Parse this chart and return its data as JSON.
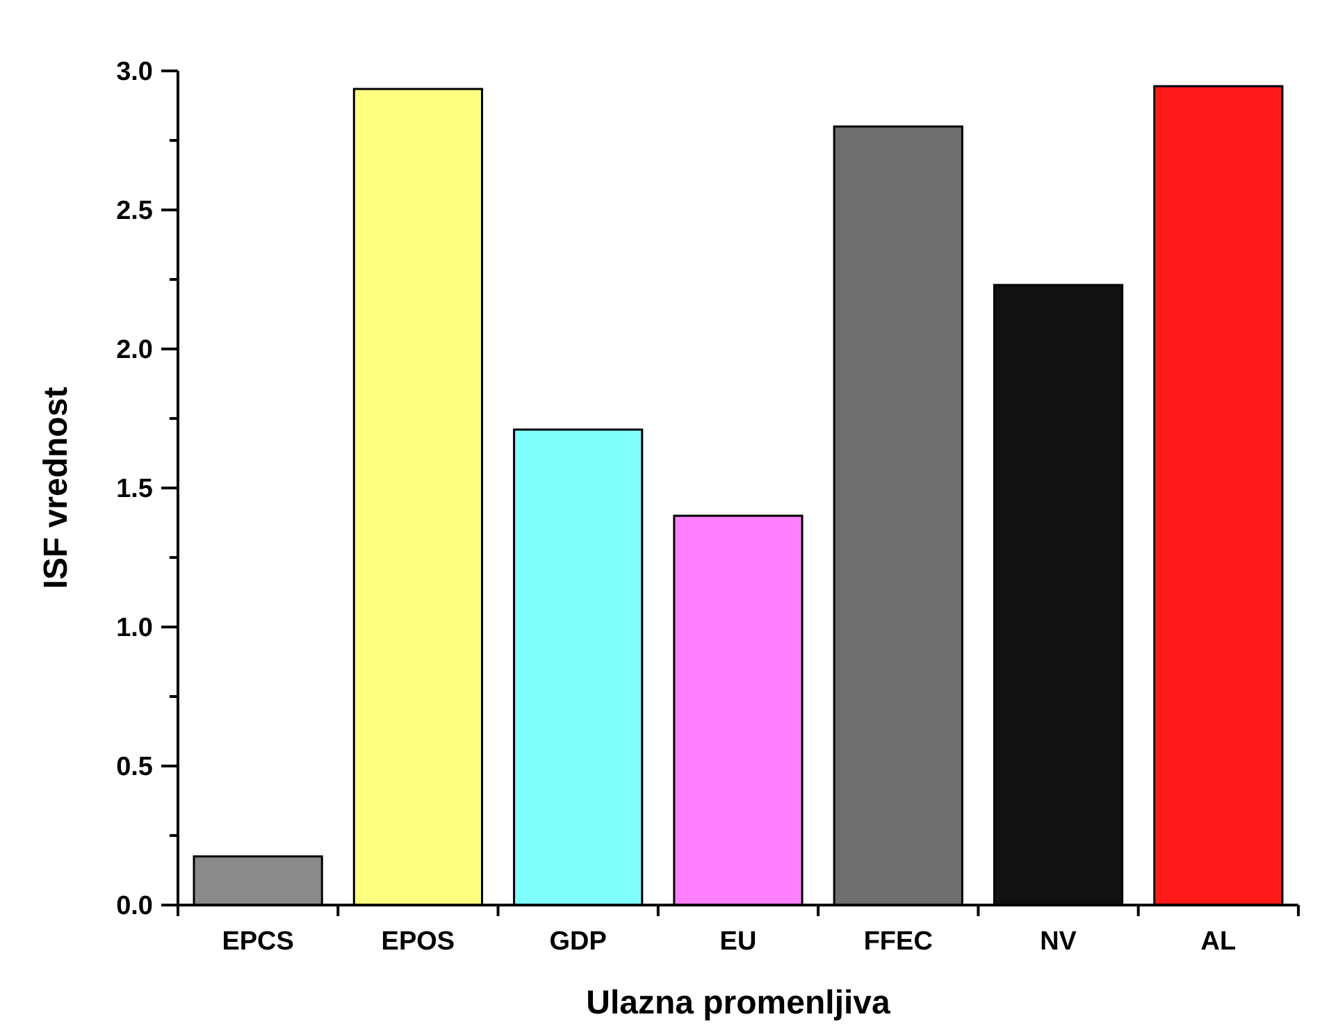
{
  "chart_data": {
    "type": "bar",
    "xlabel": "Ulazna promenljiva",
    "ylabel": "ISF vrednost",
    "categories": [
      "EPCS",
      "EPOS",
      "GDP",
      "EU",
      "FFEC",
      "NV",
      "AL"
    ],
    "values": [
      0.175,
      2.935,
      1.71,
      1.4,
      2.8,
      2.23,
      2.945
    ],
    "colors": [
      "#8a8a8a",
      "#ffff80",
      "#80ffff",
      "#ff80ff",
      "#6e6e6e",
      "#111111",
      "#ff1a1a"
    ],
    "ylim": [
      0,
      3
    ],
    "yticks": [
      {
        "value": 0,
        "label": "0.0"
      },
      {
        "value": 0.25,
        "label": null
      },
      0.5,
      {
        "value": 0.75,
        "label": null
      },
      {
        "value": 1,
        "label": "1.0"
      },
      {
        "value": 1.25,
        "label": null
      },
      1.5,
      {
        "value": 1.75,
        "label": null
      },
      {
        "value": 2,
        "label": "2.0"
      },
      {
        "value": 2.25,
        "label": null
      },
      2.5,
      {
        "value": 2.75,
        "label": null
      },
      {
        "value": 3,
        "label": "3.0"
      }
    ],
    "grid": false
  }
}
